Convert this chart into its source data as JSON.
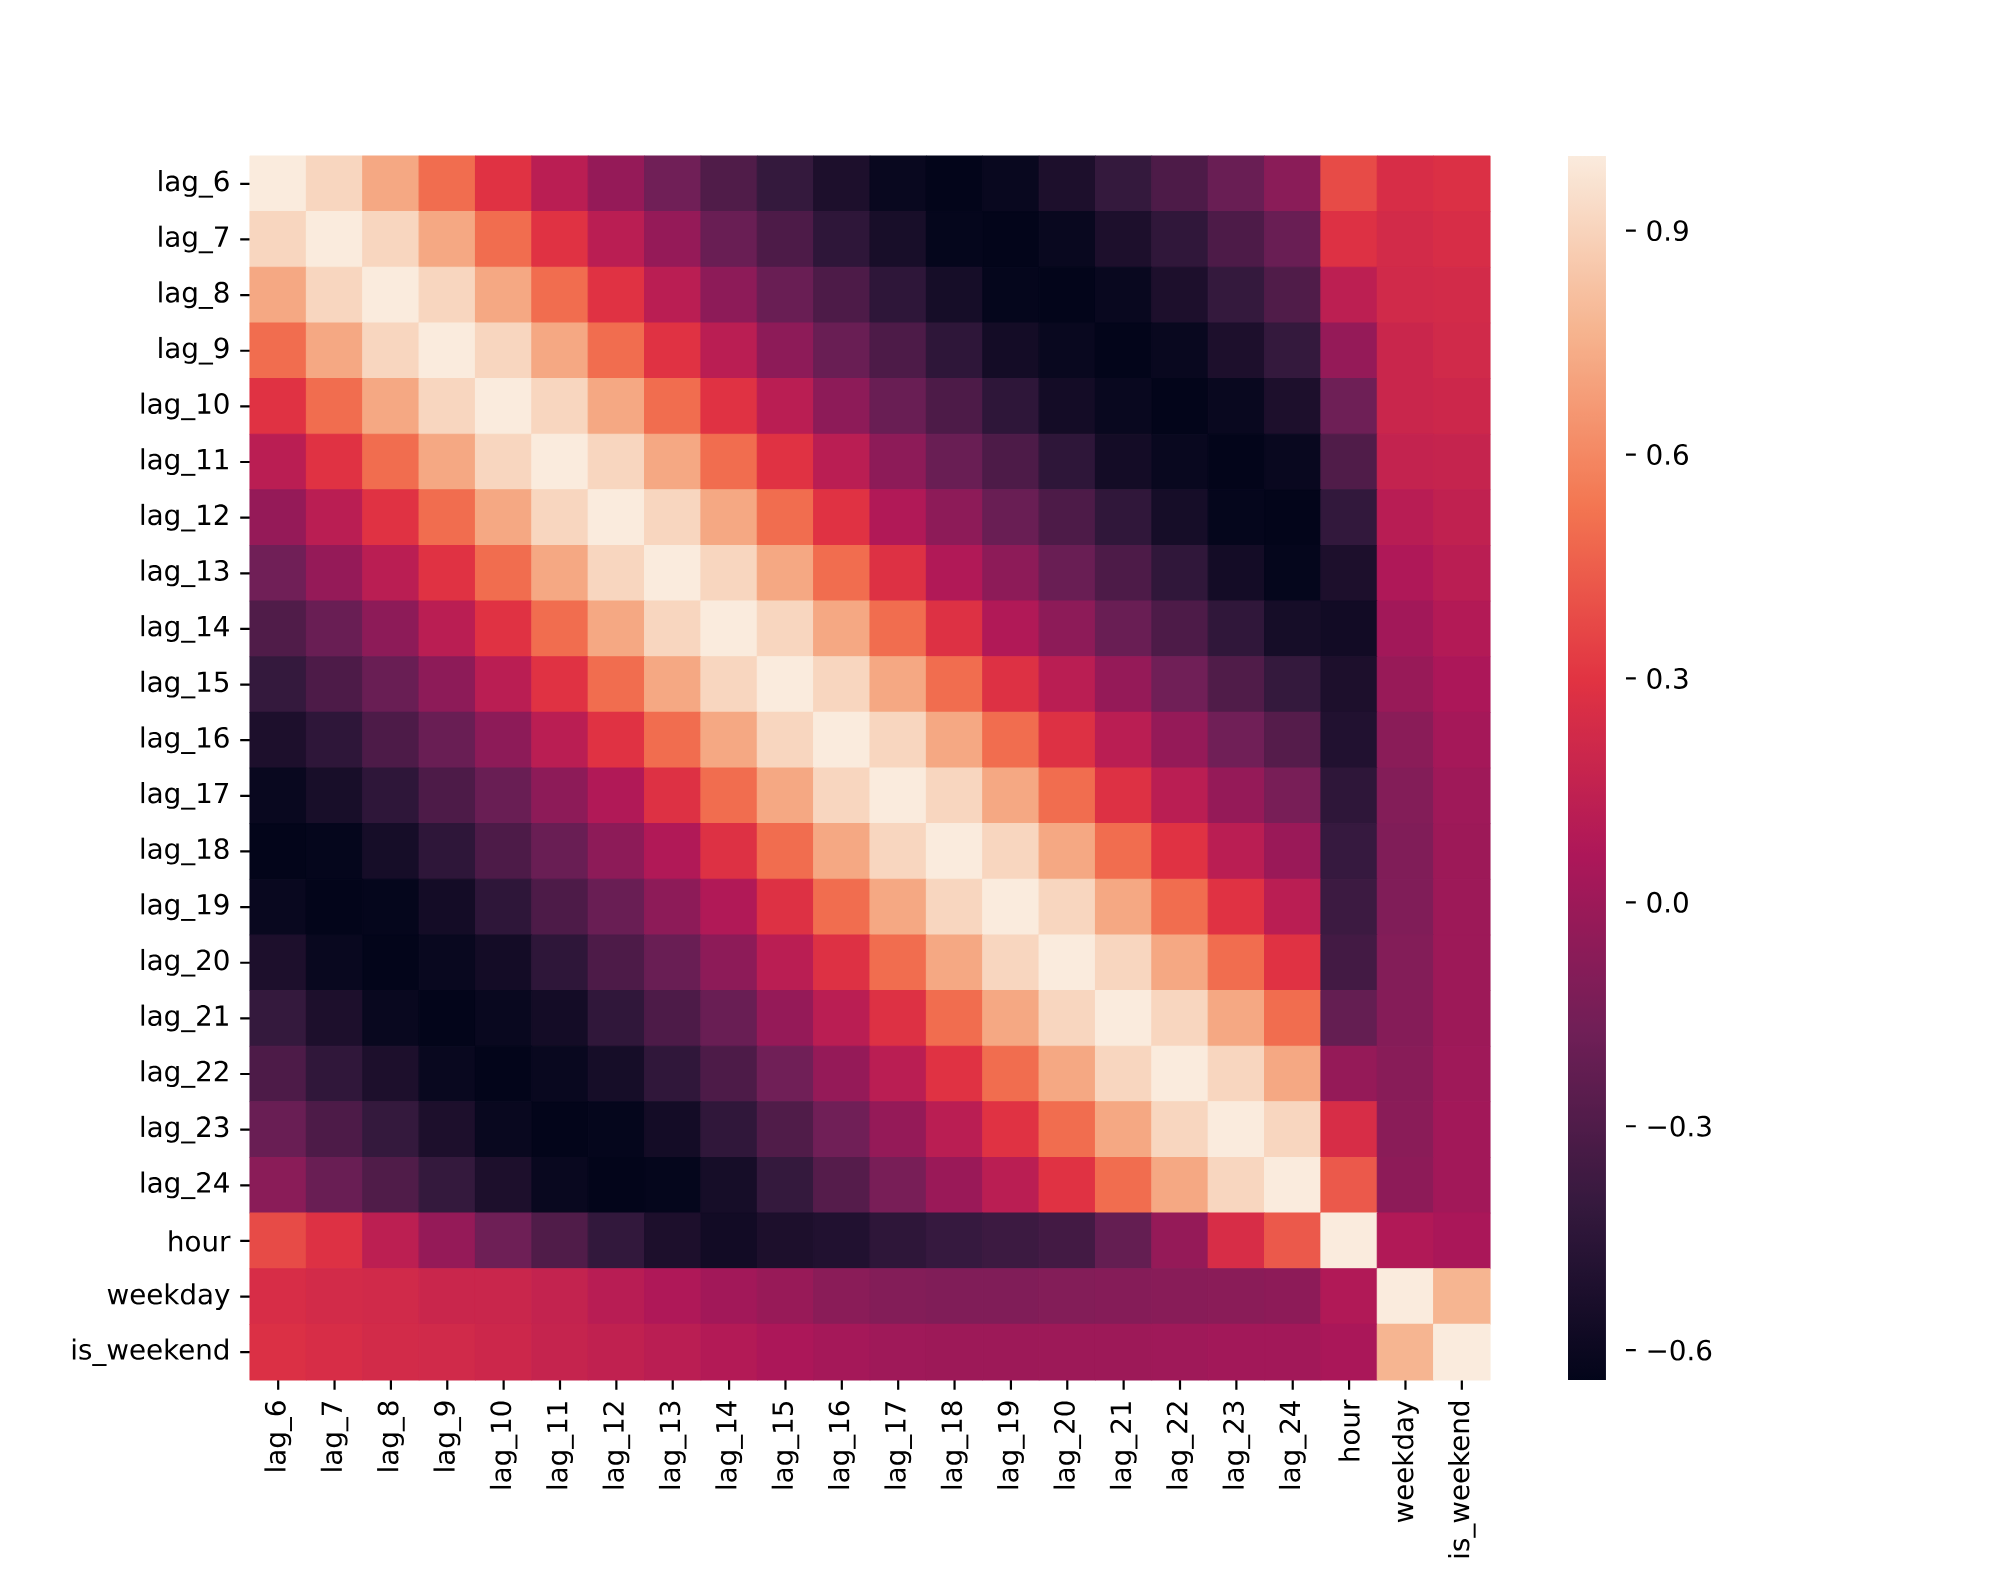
{
  "chart_data": {
    "type": "heatmap",
    "categories": [
      "lag_6",
      "lag_7",
      "lag_8",
      "lag_9",
      "lag_10",
      "lag_11",
      "lag_12",
      "lag_13",
      "lag_14",
      "lag_15",
      "lag_16",
      "lag_17",
      "lag_18",
      "lag_19",
      "lag_20",
      "lag_21",
      "lag_22",
      "lag_23",
      "lag_24",
      "hour",
      "weekday",
      "is_weekend"
    ],
    "y_categories": [
      "lag_6",
      "lag_7",
      "lag_8",
      "lag_9",
      "lag_10",
      "lag_11",
      "lag_12",
      "lag_13",
      "lag_14",
      "lag_15",
      "lag_16",
      "lag_17",
      "lag_18",
      "lag_19",
      "lag_20",
      "lag_21",
      "lag_22",
      "lag_23",
      "lag_24",
      "hour",
      "weekday",
      "is_weekend"
    ],
    "cells": [
      [
        1.0,
        0.91,
        0.72,
        0.5,
        0.29,
        0.12,
        -0.03,
        -0.17,
        -0.3,
        -0.41,
        -0.52,
        -0.61,
        -0.64,
        -0.61,
        -0.52,
        -0.41,
        -0.31,
        -0.2,
        -0.07,
        0.38,
        0.25,
        0.27
      ],
      [
        0.91,
        1.0,
        0.91,
        0.72,
        0.5,
        0.29,
        0.12,
        -0.03,
        -0.2,
        -0.31,
        -0.44,
        -0.54,
        -0.63,
        -0.64,
        -0.61,
        -0.52,
        -0.43,
        -0.31,
        -0.2,
        0.28,
        0.23,
        0.25
      ],
      [
        0.72,
        0.91,
        1.0,
        0.91,
        0.72,
        0.5,
        0.29,
        0.12,
        -0.06,
        -0.2,
        -0.31,
        -0.44,
        -0.55,
        -0.63,
        -0.64,
        -0.61,
        -0.52,
        -0.41,
        -0.3,
        0.13,
        0.22,
        0.23
      ],
      [
        0.5,
        0.72,
        0.91,
        1.0,
        0.91,
        0.72,
        0.5,
        0.29,
        0.12,
        -0.06,
        -0.2,
        -0.31,
        -0.44,
        -0.56,
        -0.61,
        -0.64,
        -0.61,
        -0.52,
        -0.41,
        -0.03,
        0.19,
        0.22
      ],
      [
        0.29,
        0.5,
        0.72,
        0.91,
        1.0,
        0.91,
        0.72,
        0.5,
        0.29,
        0.12,
        -0.06,
        -0.2,
        -0.31,
        -0.44,
        -0.56,
        -0.61,
        -0.64,
        -0.61,
        -0.52,
        -0.18,
        0.19,
        0.2
      ],
      [
        0.12,
        0.29,
        0.5,
        0.72,
        0.91,
        1.0,
        0.91,
        0.72,
        0.5,
        0.29,
        0.12,
        -0.06,
        -0.2,
        -0.31,
        -0.44,
        -0.56,
        -0.61,
        -0.64,
        -0.61,
        -0.3,
        0.16,
        0.17
      ],
      [
        -0.03,
        0.12,
        0.29,
        0.5,
        0.72,
        0.91,
        1.0,
        0.91,
        0.72,
        0.5,
        0.29,
        0.08,
        -0.06,
        -0.2,
        -0.31,
        -0.43,
        -0.55,
        -0.63,
        -0.64,
        -0.42,
        0.11,
        0.15
      ],
      [
        -0.17,
        -0.03,
        0.12,
        0.29,
        0.5,
        0.72,
        0.91,
        1.0,
        0.91,
        0.72,
        0.5,
        0.28,
        0.08,
        -0.06,
        -0.2,
        -0.31,
        -0.43,
        -0.56,
        -0.63,
        -0.52,
        0.07,
        0.12
      ],
      [
        -0.3,
        -0.2,
        -0.06,
        0.12,
        0.29,
        0.5,
        0.72,
        0.91,
        1.0,
        0.91,
        0.72,
        0.5,
        0.28,
        0.08,
        -0.06,
        -0.2,
        -0.31,
        -0.43,
        -0.55,
        -0.57,
        0.02,
        0.09
      ],
      [
        -0.41,
        -0.31,
        -0.2,
        -0.06,
        0.12,
        0.29,
        0.5,
        0.72,
        0.91,
        1.0,
        0.91,
        0.72,
        0.5,
        0.28,
        0.12,
        -0.03,
        -0.17,
        -0.3,
        -0.41,
        -0.52,
        -0.02,
        0.06
      ],
      [
        -0.52,
        -0.44,
        -0.31,
        -0.2,
        -0.06,
        0.12,
        0.29,
        0.5,
        0.72,
        0.91,
        1.0,
        0.91,
        0.72,
        0.5,
        0.28,
        0.12,
        -0.03,
        -0.17,
        -0.28,
        -0.5,
        -0.07,
        0.03
      ],
      [
        -0.61,
        -0.54,
        -0.44,
        -0.31,
        -0.2,
        -0.06,
        0.08,
        0.28,
        0.5,
        0.72,
        0.91,
        1.0,
        0.91,
        0.72,
        0.5,
        0.28,
        0.12,
        -0.03,
        -0.14,
        -0.44,
        -0.1,
        0.01
      ],
      [
        -0.64,
        -0.63,
        -0.55,
        -0.44,
        -0.31,
        -0.2,
        -0.06,
        0.08,
        0.28,
        0.5,
        0.72,
        0.91,
        1.0,
        0.91,
        0.72,
        0.5,
        0.29,
        0.12,
        -0.01,
        -0.4,
        -0.11,
        0.0
      ],
      [
        -0.61,
        -0.64,
        -0.63,
        -0.56,
        -0.44,
        -0.31,
        -0.2,
        -0.06,
        0.08,
        0.28,
        0.5,
        0.72,
        0.91,
        1.0,
        0.91,
        0.72,
        0.5,
        0.29,
        0.12,
        -0.38,
        -0.11,
        0.0
      ],
      [
        -0.52,
        -0.61,
        -0.64,
        -0.61,
        -0.56,
        -0.44,
        -0.31,
        -0.2,
        -0.06,
        0.12,
        0.28,
        0.5,
        0.72,
        0.91,
        1.0,
        0.91,
        0.72,
        0.5,
        0.29,
        -0.35,
        -0.1,
        0.0
      ],
      [
        -0.41,
        -0.52,
        -0.61,
        -0.64,
        -0.61,
        -0.56,
        -0.43,
        -0.31,
        -0.2,
        -0.03,
        0.12,
        0.28,
        0.5,
        0.72,
        0.91,
        1.0,
        0.91,
        0.72,
        0.5,
        -0.22,
        -0.09,
        0.0
      ],
      [
        -0.31,
        -0.43,
        -0.52,
        -0.61,
        -0.64,
        -0.61,
        -0.55,
        -0.43,
        -0.31,
        -0.17,
        -0.03,
        0.12,
        0.29,
        0.5,
        0.72,
        0.91,
        1.0,
        0.91,
        0.72,
        -0.03,
        -0.08,
        0.01
      ],
      [
        -0.2,
        -0.31,
        -0.41,
        -0.52,
        -0.61,
        -0.64,
        -0.63,
        -0.56,
        -0.43,
        -0.3,
        -0.17,
        -0.03,
        0.12,
        0.29,
        0.5,
        0.72,
        0.91,
        1.0,
        0.91,
        0.25,
        -0.07,
        0.02
      ],
      [
        -0.07,
        -0.2,
        -0.3,
        -0.41,
        -0.52,
        -0.61,
        -0.64,
        -0.63,
        -0.55,
        -0.41,
        -0.28,
        -0.14,
        -0.01,
        0.12,
        0.29,
        0.5,
        0.72,
        0.91,
        1.0,
        0.43,
        -0.06,
        0.02
      ],
      [
        0.38,
        0.28,
        0.13,
        -0.03,
        -0.18,
        -0.3,
        -0.42,
        -0.52,
        -0.57,
        -0.52,
        -0.5,
        -0.44,
        -0.4,
        -0.38,
        -0.35,
        -0.22,
        -0.03,
        0.25,
        0.43,
        1.0,
        0.08,
        0.05
      ],
      [
        0.25,
        0.23,
        0.22,
        0.19,
        0.19,
        0.16,
        0.11,
        0.07,
        0.02,
        -0.02,
        -0.07,
        -0.1,
        -0.11,
        -0.11,
        -0.1,
        -0.09,
        -0.08,
        -0.07,
        -0.06,
        0.08,
        1.0,
        0.77
      ],
      [
        0.27,
        0.25,
        0.23,
        0.22,
        0.2,
        0.17,
        0.15,
        0.12,
        0.09,
        0.06,
        0.03,
        0.01,
        0.0,
        0.0,
        0.0,
        0.0,
        0.01,
        0.02,
        0.02,
        0.05,
        0.77,
        1.0
      ]
    ],
    "clim": [
      -0.64,
      1.0
    ],
    "cticks": [
      {
        "value": -0.6,
        "label": "−0.6"
      },
      {
        "value": -0.3,
        "label": "−0.3"
      },
      {
        "value": 0.0,
        "label": "0.0"
      },
      0.3,
      0.6,
      0.9
    ]
  }
}
